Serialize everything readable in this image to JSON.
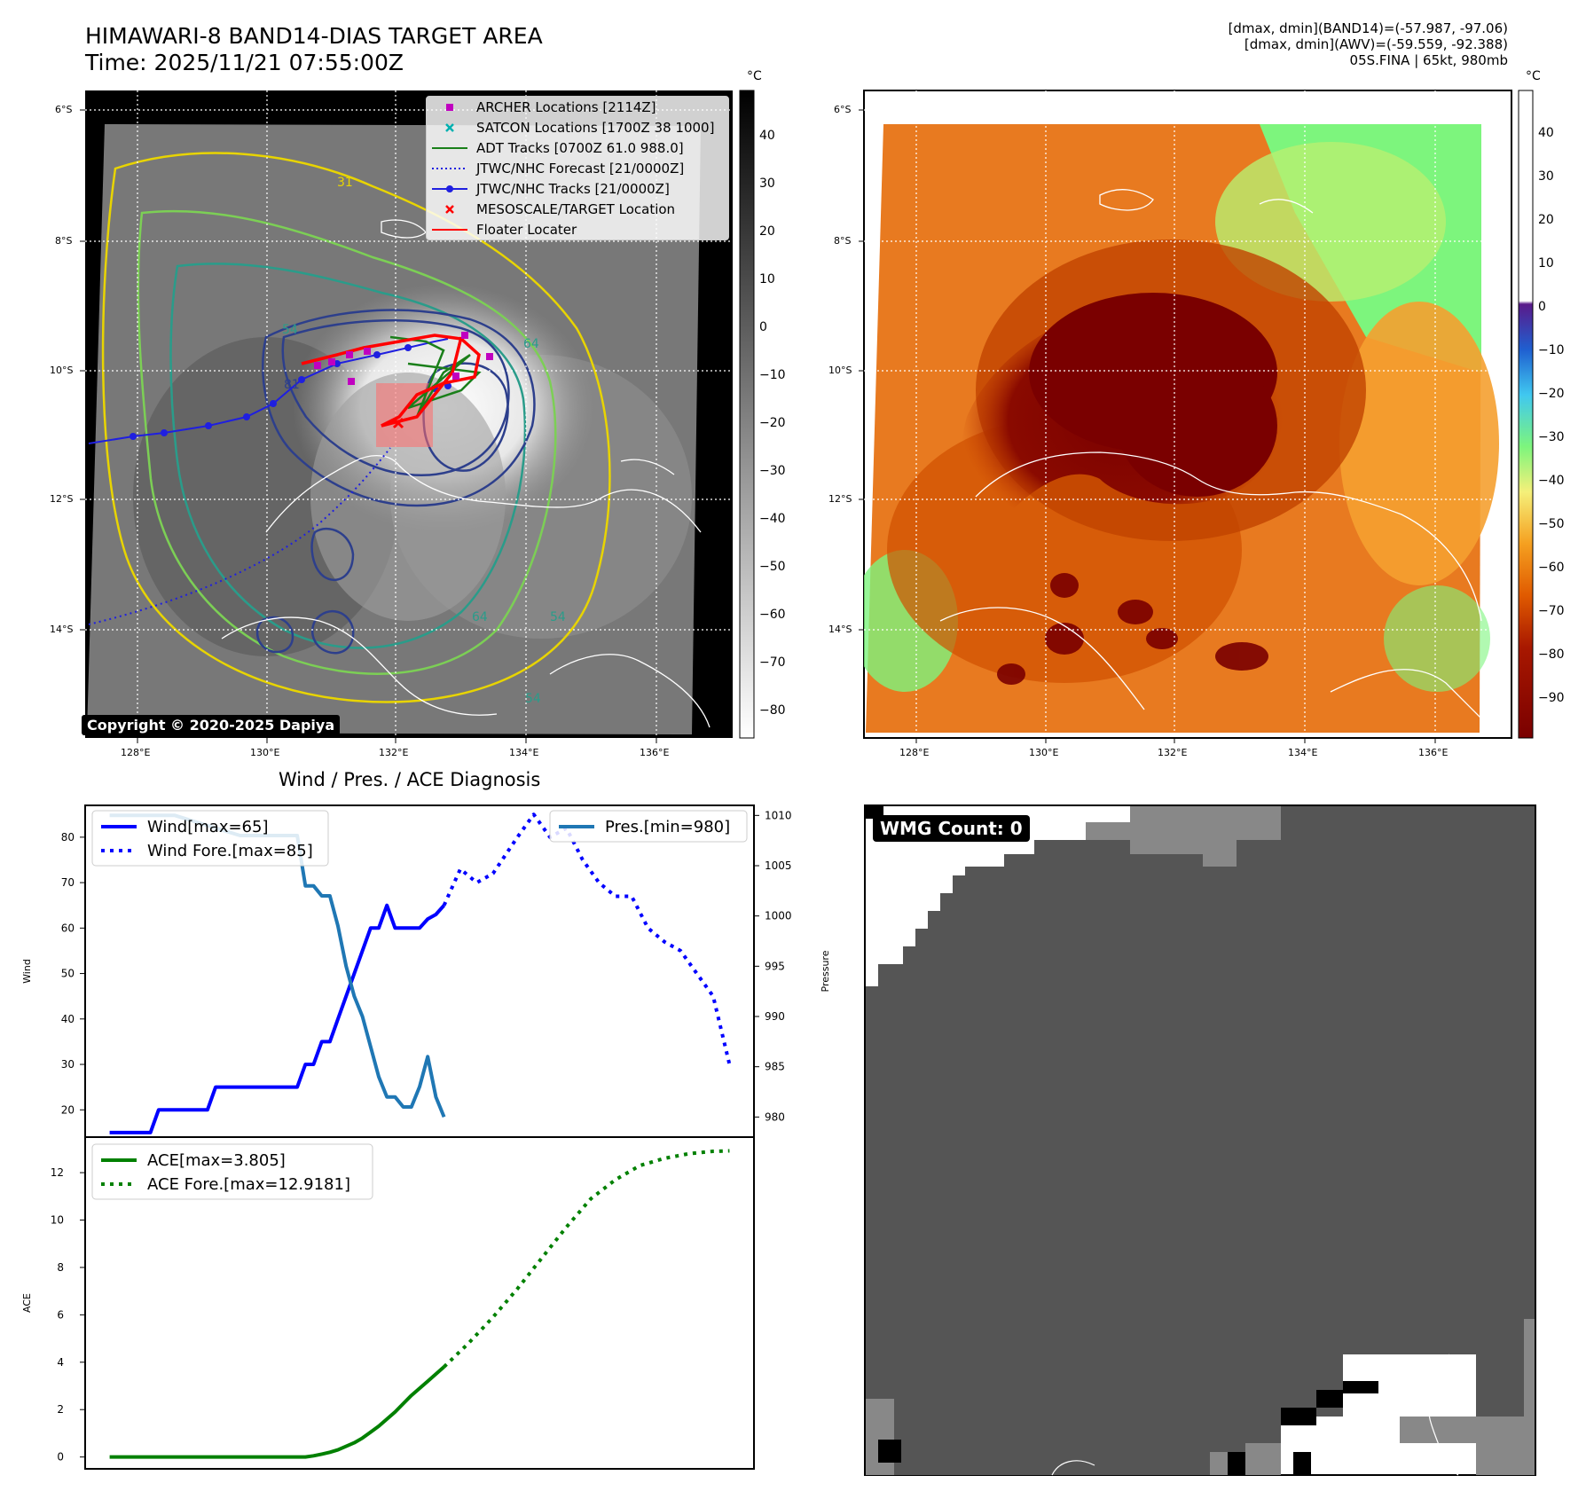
{
  "header": {
    "title_line1": "HIMAWARI-8 BAND14-DIAS TARGET AREA",
    "title_line2": "Time: 2025/11/21 07:55:00Z",
    "info_line1": "[dmax, dmin](BAND14)=(-57.987, -97.06)",
    "info_line2": "[dmax, dmin](AWV)=(-59.559, -92.388)",
    "info_line3": "05S.FINA | 65kt, 980mb"
  },
  "map_axes": {
    "lat_labels": [
      "6°S",
      "8°S",
      "10°S",
      "12°S",
      "14°S"
    ],
    "lon_labels": [
      "128°E",
      "130°E",
      "132°E",
      "134°E",
      "136°E"
    ]
  },
  "left_map": {
    "copyright": "Copyright © 2020-2025 Dapiya",
    "contour_labels": [
      "54",
      "64",
      "81",
      "54",
      "64",
      "31",
      "54"
    ],
    "legend": [
      {
        "label": "ARCHER Locations [2114Z]",
        "symbol": "square",
        "color": "#c000c0"
      },
      {
        "label": "SATCON Locations [1700Z 38 1000]",
        "symbol": "x",
        "color": "#00b0b0"
      },
      {
        "label": "ADT Tracks [0700Z 61.0 988.0]",
        "symbol": "line",
        "color": "#1a7f1a"
      },
      {
        "label": "JTWC/NHC Forecast [21/0000Z]",
        "symbol": "dotted",
        "color": "#1f1fe0"
      },
      {
        "label": "JTWC/NHC Tracks [21/0000Z]",
        "symbol": "line-dot",
        "color": "#1f1fe0"
      },
      {
        "label": "MESOSCALE/TARGET Location",
        "symbol": "x",
        "color": "#ff0000"
      },
      {
        "label": "Floater Locater",
        "symbol": "line",
        "color": "#ff0000"
      }
    ],
    "colorbar_unit": "°C",
    "colorbar_ticks": [
      "40",
      "30",
      "20",
      "10",
      "0",
      "−10",
      "−20",
      "−30",
      "−40",
      "−50",
      "−60",
      "−70",
      "−80"
    ]
  },
  "right_map": {
    "colorbar_unit": "°C",
    "colorbar_ticks": [
      "40",
      "30",
      "20",
      "10",
      "0",
      "−10",
      "−20",
      "−30",
      "−40",
      "−50",
      "−60",
      "−70",
      "−80",
      "−90"
    ]
  },
  "wmg": {
    "label": "WMG Count: 0"
  },
  "chart_data": [
    {
      "type": "line",
      "title": "Wind / Pres. / ACE Diagnosis",
      "xlabel": "",
      "ylabel": "Wind",
      "ylabel_right": "Pressure",
      "ylim": [
        14,
        87
      ],
      "ylim_right": [
        978,
        1011
      ],
      "yticks": [
        20,
        30,
        40,
        50,
        60,
        70,
        80
      ],
      "yticks_right": [
        980,
        985,
        990,
        995,
        1000,
        1005,
        1010
      ],
      "series": [
        {
          "name": "Wind[max=65]",
          "axis": "left",
          "style": "solid",
          "color": "#0000ff",
          "x": [
            0,
            3,
            5,
            6,
            12,
            13,
            18,
            19,
            20,
            21,
            22,
            23,
            24,
            25,
            26,
            27,
            28,
            29,
            30,
            31,
            32,
            33,
            34,
            35,
            36,
            37,
            38,
            39,
            40,
            41
          ],
          "values": [
            15,
            15,
            15,
            20,
            20,
            25,
            25,
            25,
            25,
            25,
            25,
            25,
            30,
            30,
            35,
            35,
            40,
            45,
            50,
            55,
            60,
            60,
            65,
            60,
            60,
            60,
            60,
            62,
            63,
            65
          ]
        },
        {
          "name": "Wind Fore.[max=85]",
          "axis": "left",
          "style": "dotted",
          "color": "#0000ff",
          "x": [
            41,
            43,
            45,
            47,
            50,
            52,
            54,
            56,
            58,
            60,
            62,
            64,
            66,
            68,
            70,
            72,
            74,
            76
          ],
          "values": [
            65,
            73,
            70,
            72,
            80,
            85,
            80,
            82,
            75,
            70,
            67,
            67,
            60,
            57,
            55,
            50,
            45,
            30
          ]
        },
        {
          "name": "Pres.[min=980]",
          "axis": "right",
          "style": "solid",
          "color": "#1f77b4",
          "x": [
            0,
            3,
            6,
            8,
            12,
            16,
            18,
            19,
            20,
            21,
            22,
            23,
            24,
            25,
            26,
            27,
            28,
            29,
            30,
            31,
            32,
            33,
            34,
            35,
            36,
            37,
            38,
            39,
            40,
            41
          ],
          "values": [
            1010,
            1010,
            1010,
            1010,
            1009,
            1008,
            1008,
            1008,
            1008,
            1008,
            1008,
            1008,
            1003,
            1003,
            1002,
            1002,
            999,
            995,
            992,
            990,
            987,
            984,
            982,
            982,
            981,
            981,
            983,
            986,
            982,
            980
          ]
        }
      ]
    },
    {
      "type": "line",
      "ylabel": "ACE",
      "ylim": [
        -0.5,
        13.5
      ],
      "yticks": [
        0,
        2,
        4,
        6,
        8,
        10,
        12
      ],
      "series": [
        {
          "name": "ACE[max=3.805]",
          "style": "solid",
          "color": "#008000",
          "x": [
            0,
            10,
            19,
            20,
            21,
            22,
            23,
            24,
            25,
            26,
            27,
            28,
            29,
            30,
            31,
            32,
            33,
            34,
            35,
            36,
            37,
            38,
            39,
            40,
            41
          ],
          "values": [
            0,
            0,
            0,
            0,
            0,
            0,
            0,
            0,
            0.05,
            0.12,
            0.2,
            0.3,
            0.45,
            0.6,
            0.8,
            1.05,
            1.3,
            1.6,
            1.9,
            2.25,
            2.6,
            2.9,
            3.2,
            3.5,
            3.805
          ]
        },
        {
          "name": "ACE Fore.[max=12.9181]",
          "style": "dotted",
          "color": "#008000",
          "x": [
            41,
            44,
            47,
            50,
            53,
            56,
            59,
            62,
            65,
            68,
            71,
            74,
            76
          ],
          "values": [
            3.805,
            4.8,
            5.9,
            7.1,
            8.4,
            9.7,
            10.9,
            11.7,
            12.3,
            12.6,
            12.8,
            12.9,
            12.92
          ]
        }
      ]
    }
  ]
}
